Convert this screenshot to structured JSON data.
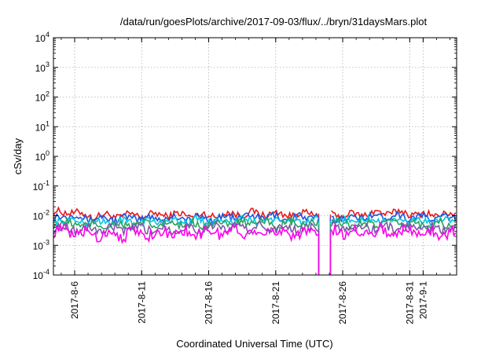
{
  "chart_data": {
    "type": "line",
    "title": "/data/run/goesPlots/archive/2017-09-03/flux/../bryn/31daysMars.plot",
    "xlabel": "Coordinated Universal Time (UTC)",
    "ylabel": "cSv/day",
    "x_range": [
      "2017-08-04T10:00",
      "2017-09-03T12:00"
    ],
    "x_tick_labels": [
      "2017-8-6",
      "2017-8-11",
      "2017-8-16",
      "2017-8-21",
      "2017-8-26",
      "2017-8-31",
      "2017-9-1"
    ],
    "x_tick_dates": [
      "2017-08-06",
      "2017-08-11",
      "2017-08-16",
      "2017-08-21",
      "2017-08-26",
      "2017-08-31",
      "2017-09-01"
    ],
    "y_scale": "log",
    "ylim": [
      0.0001,
      10000
    ],
    "y_tick_labels": [
      {
        "base": "10",
        "exp": "-4"
      },
      {
        "base": "10",
        "exp": "-3"
      },
      {
        "base": "10",
        "exp": "-2"
      },
      {
        "base": "10",
        "exp": "-1"
      },
      {
        "base": "10",
        "exp": "0"
      },
      {
        "base": "10",
        "exp": "1"
      },
      {
        "base": "10",
        "exp": "2"
      },
      {
        "base": "10",
        "exp": "3"
      },
      {
        "base": "10",
        "exp": "4"
      }
    ],
    "grid": true,
    "data_gaps": [
      [
        "2017-08-24T05:00",
        "2017-08-25T02:00"
      ]
    ],
    "series": [
      {
        "color": "#e41a1c",
        "level": 0.0115,
        "noise": 0.12,
        "anchors": [
          [
            "2017-08-04T10:00",
            0.012
          ],
          [
            "2017-08-05T12:00",
            0.014
          ],
          [
            "2017-08-07T00:00",
            0.01
          ],
          [
            "2017-08-10T00:00",
            0.01
          ],
          [
            "2017-08-13T00:00",
            0.011
          ],
          [
            "2017-08-16T00:00",
            0.01
          ],
          [
            "2017-08-19T00:00",
            0.012
          ],
          [
            "2017-08-22T00:00",
            0.011
          ],
          [
            "2017-08-24T00:00",
            0.012
          ],
          [
            "2017-08-26T00:00",
            0.01
          ],
          [
            "2017-08-28T00:00",
            0.012
          ],
          [
            "2017-08-30T00:00",
            0.013
          ],
          [
            "2017-09-01T00:00",
            0.011
          ],
          [
            "2017-09-03T12:00",
            0.011
          ]
        ]
      },
      {
        "color": "#1f55e0",
        "level": 0.0085,
        "noise": 0.13,
        "anchors": [
          [
            "2017-08-04T10:00",
            0.009
          ],
          [
            "2017-08-05T12:00",
            0.011
          ],
          [
            "2017-08-07T00:00",
            0.008
          ],
          [
            "2017-08-10T00:00",
            0.008
          ],
          [
            "2017-08-13T00:00",
            0.0085
          ],
          [
            "2017-08-16T00:00",
            0.008
          ],
          [
            "2017-08-19T00:00",
            0.0095
          ],
          [
            "2017-08-22T00:00",
            0.0085
          ],
          [
            "2017-08-24T00:00",
            0.009
          ],
          [
            "2017-08-26T00:00",
            0.008
          ],
          [
            "2017-08-28T00:00",
            0.0095
          ],
          [
            "2017-08-30T00:00",
            0.01
          ],
          [
            "2017-09-01T00:00",
            0.0085
          ],
          [
            "2017-09-03T12:00",
            0.0085
          ]
        ]
      },
      {
        "color": "#00c8e0",
        "level": 0.0065,
        "noise": 0.12,
        "anchors": [
          [
            "2017-08-04T10:00",
            0.007
          ],
          [
            "2017-08-07T00:00",
            0.006
          ],
          [
            "2017-08-13T00:00",
            0.0065
          ],
          [
            "2017-08-19T00:00",
            0.007
          ],
          [
            "2017-08-24T00:00",
            0.0065
          ],
          [
            "2017-08-28T00:00",
            0.007
          ],
          [
            "2017-09-03T12:00",
            0.0065
          ]
        ]
      },
      {
        "color": "#2ca25f",
        "level": 0.005,
        "noise": 0.14,
        "anchors": [
          [
            "2017-08-04T10:00",
            0.0055
          ],
          [
            "2017-08-07T00:00",
            0.0048
          ],
          [
            "2017-08-13T00:00",
            0.005
          ],
          [
            "2017-08-19T00:00",
            0.0055
          ],
          [
            "2017-08-24T00:00",
            0.005
          ],
          [
            "2017-08-28T00:00",
            0.0055
          ],
          [
            "2017-09-03T12:00",
            0.005
          ]
        ]
      },
      {
        "color": "#7b5aa6",
        "level": 0.0036,
        "noise": 0.16,
        "anchors": [
          [
            "2017-08-04T10:00",
            0.004
          ],
          [
            "2017-08-07T00:00",
            0.0034
          ],
          [
            "2017-08-13T00:00",
            0.0036
          ],
          [
            "2017-08-19T00:00",
            0.004
          ],
          [
            "2017-08-24T00:00",
            0.0036
          ],
          [
            "2017-08-28T00:00",
            0.004
          ],
          [
            "2017-09-03T12:00",
            0.0036
          ]
        ]
      },
      {
        "color": "#ff00ee",
        "level": 0.0026,
        "noise": 0.2,
        "anchors": [
          [
            "2017-08-04T10:00",
            0.003
          ],
          [
            "2017-08-07T00:00",
            0.0024
          ],
          [
            "2017-08-13T00:00",
            0.0026
          ],
          [
            "2017-08-19T00:00",
            0.003
          ],
          [
            "2017-08-24T00:00",
            0.0026
          ],
          [
            "2017-08-28T00:00",
            0.003
          ],
          [
            "2017-09-03T12:00",
            0.0026
          ]
        ]
      }
    ]
  }
}
